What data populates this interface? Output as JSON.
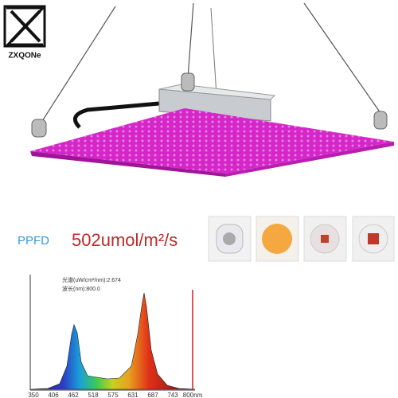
{
  "brand": "ZXQONe",
  "ppfd": {
    "label": "PPFD",
    "value": "502umol/m²/s"
  },
  "spectrum": {
    "readout": [
      "光谱(uW/cm²/nm):2.674",
      "波长(nm):800.0"
    ],
    "xticks": [
      "350",
      "406",
      "462",
      "518",
      "575",
      "631",
      "687",
      "743",
      "800nm"
    ]
  }
}
